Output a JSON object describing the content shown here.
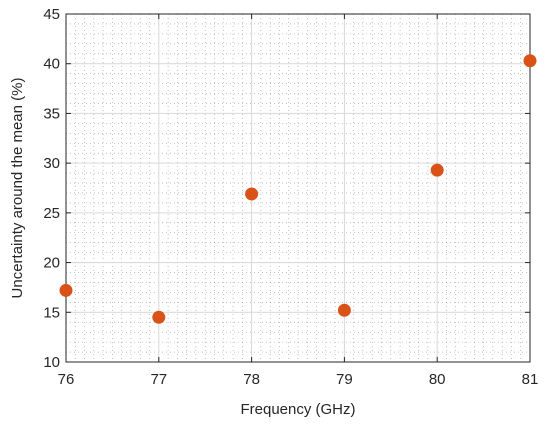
{
  "chart_data": {
    "type": "scatter",
    "title": "",
    "xlabel": "Frequency (GHz)",
    "ylabel": "Uncertainty around the mean (%)",
    "xlim": [
      76,
      81
    ],
    "ylim": [
      10,
      45
    ],
    "xticks": [
      76,
      77,
      78,
      79,
      80,
      81
    ],
    "yticks": [
      10,
      15,
      20,
      25,
      30,
      35,
      40,
      45
    ],
    "grid": true,
    "minor_grid": true,
    "marker_color": "#D95319",
    "points": [
      {
        "x": 76,
        "y": 17.2
      },
      {
        "x": 77,
        "y": 14.5
      },
      {
        "x": 78,
        "y": 26.9
      },
      {
        "x": 79,
        "y": 15.2
      },
      {
        "x": 80,
        "y": 29.3
      },
      {
        "x": 81,
        "y": 40.3
      }
    ]
  }
}
